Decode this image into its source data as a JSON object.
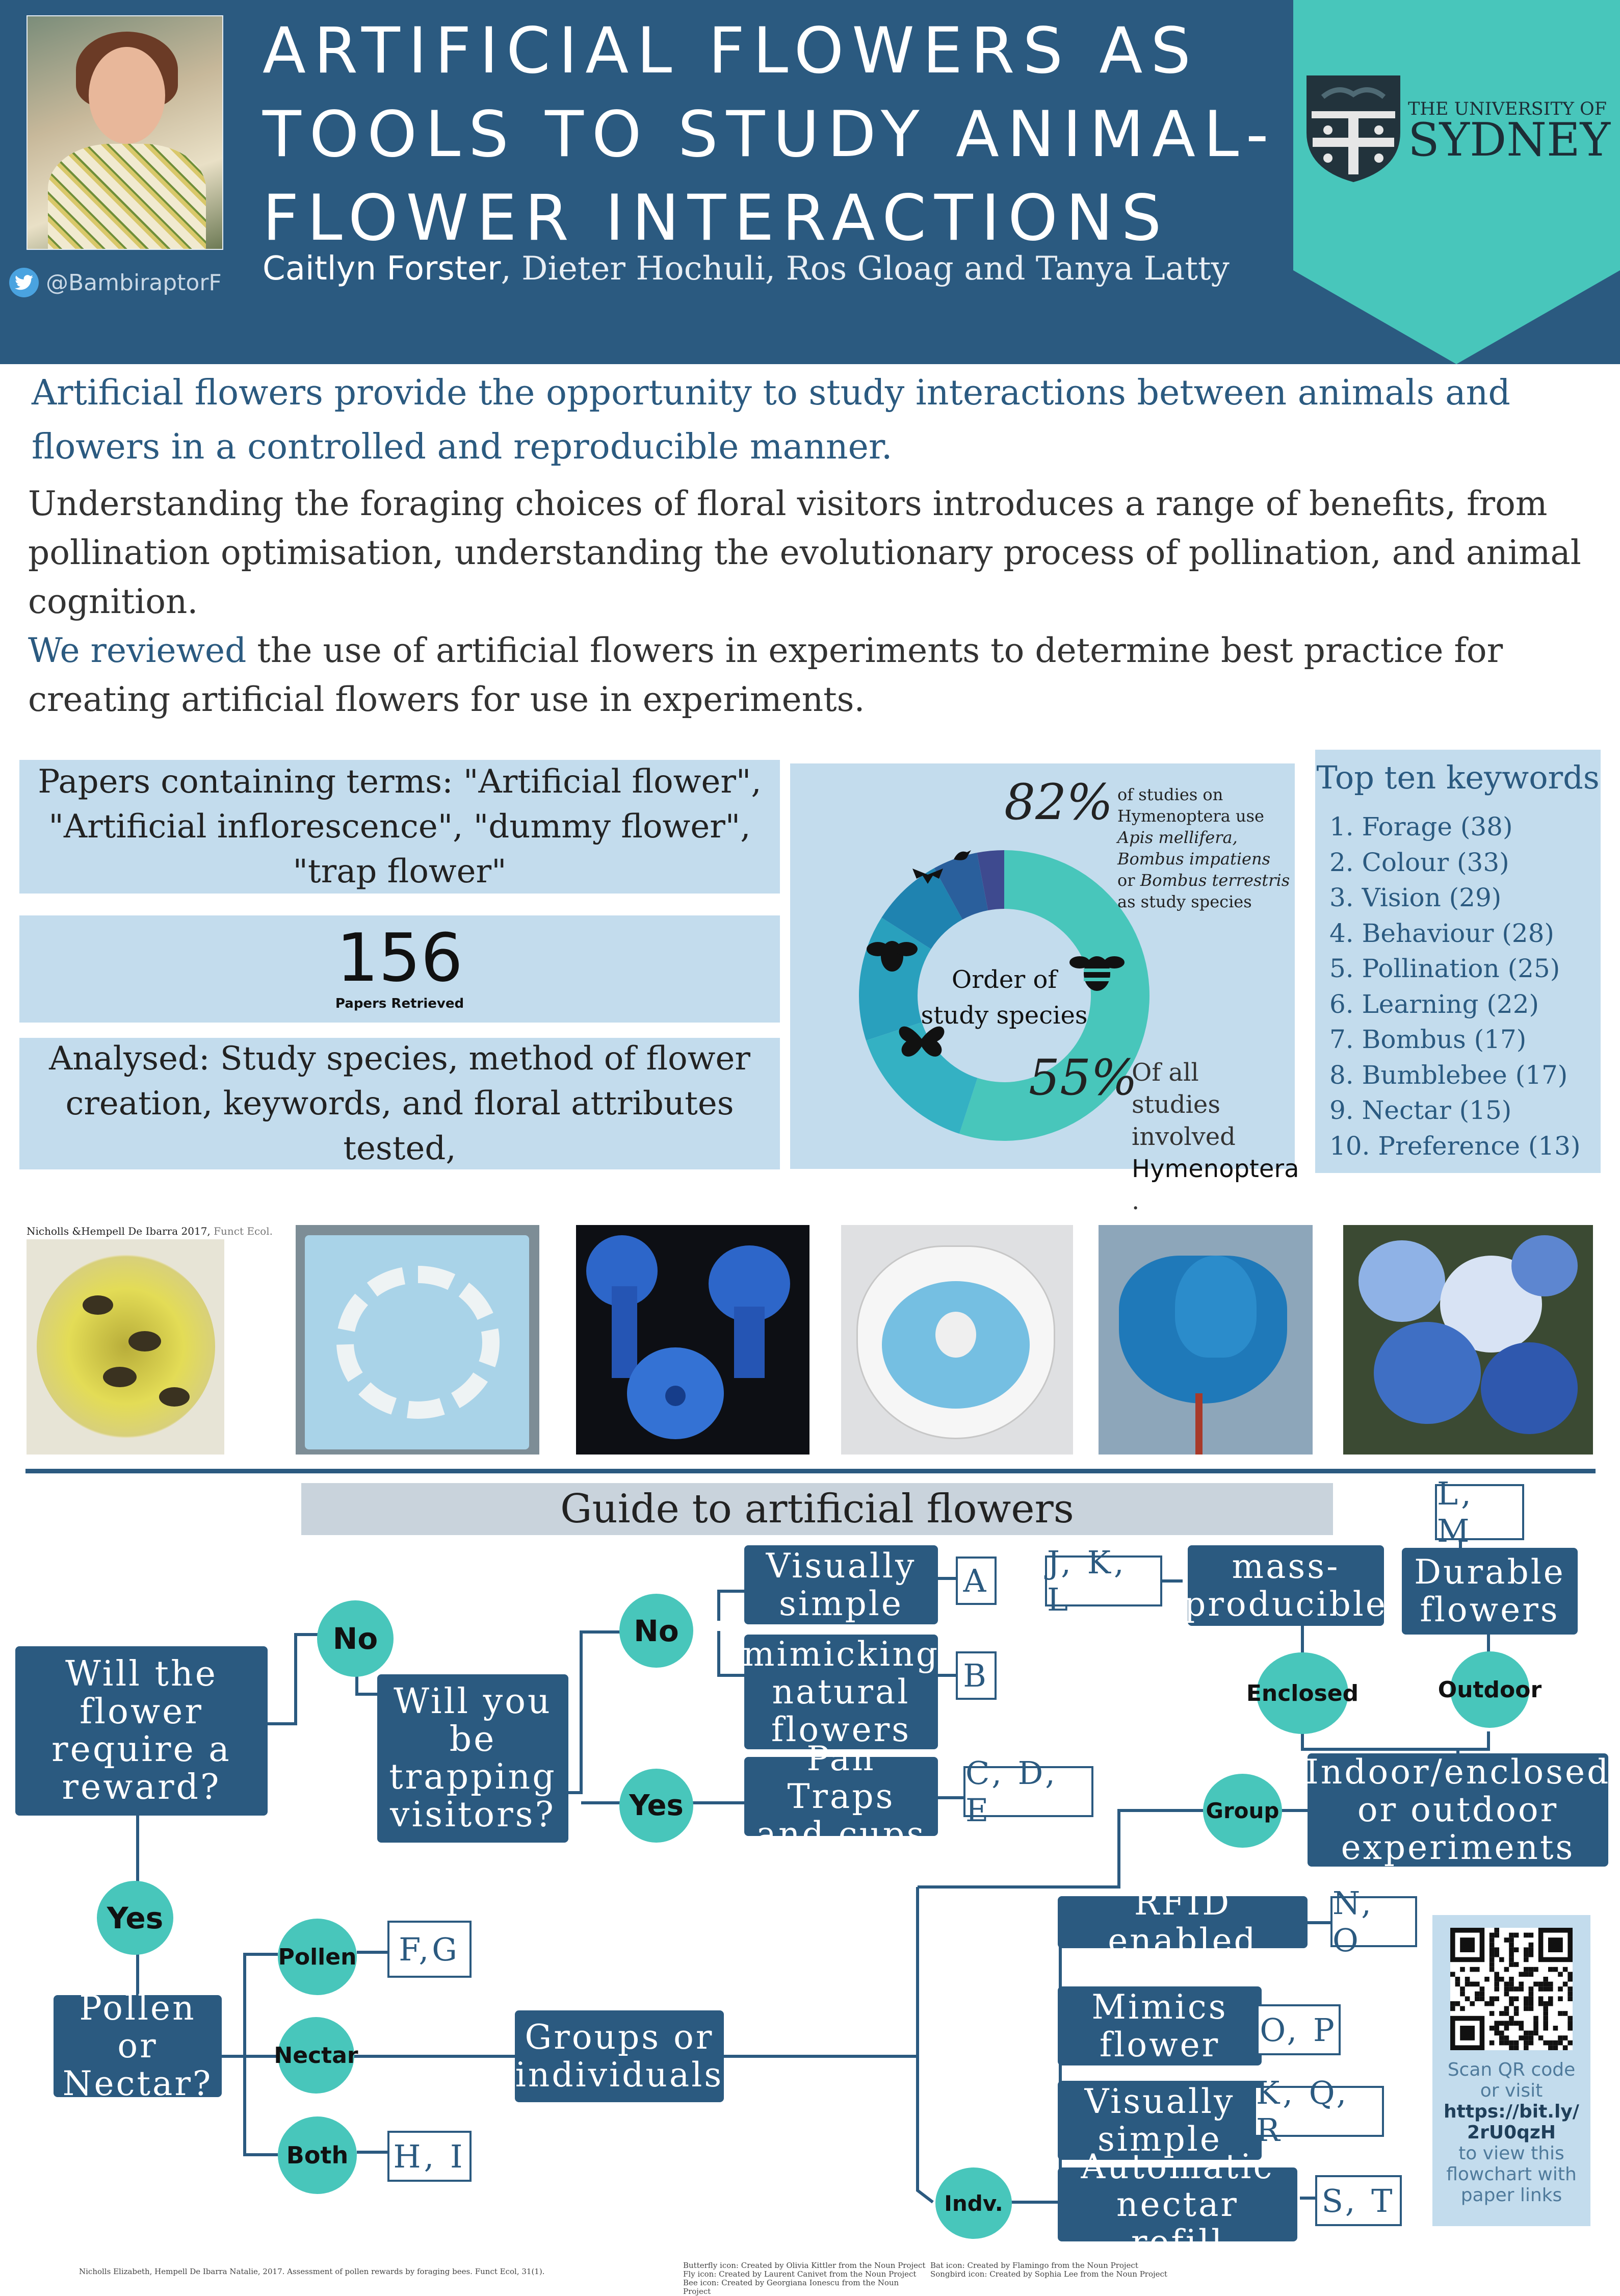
{
  "header": {
    "title_lines": [
      "ARTIFICIAL FLOWERS AS",
      "TOOLS TO STUDY ANIMAL-",
      "FLOWER INTERACTIONS"
    ],
    "lead_author": "Caitlyn Forster",
    "other_authors": ", Dieter Hochuli, Ros Gloag and Tanya Latty",
    "twitter_handle": "@BambiraptorF",
    "university_line1": "THE UNIVERSITY OF",
    "university_line2": "SYDNEY"
  },
  "intro": {
    "headline": "Artificial flowers provide the opportunity to study interactions between animals and flowers in a controlled and reproducible manner.",
    "paragraph1": "Understanding the foraging choices of floral visitors introduces a range of benefits, from pollination optimisation, understanding the evolutionary process of pollination, and animal cognition.",
    "review_highlight": "We reviewed",
    "paragraph2": " the use of artificial flowers in experiments to determine best practice for creating artificial flowers for use in experiments."
  },
  "methods": {
    "search_terms": "Papers containing terms: \"Artificial flower\", \"Artificial inflorescence\", \"dummy flower\", \"trap flower\"",
    "papers_count": "156",
    "papers_label": "Papers Retrieved",
    "analysed": "Analysed: Study species, method of flower creation, keywords, and floral attributes tested,"
  },
  "donut": {
    "center_label": "Order of study species",
    "stat1_value": "82%",
    "stat1_text_a": "of studies on Hymenoptera use ",
    "stat1_text_b": "Apis mellifera, Bombus impatiens",
    "stat1_text_c": " or ",
    "stat1_text_d": "Bombus terrestris",
    "stat1_text_e": " as study species",
    "stat2_value": "55%",
    "stat2_text": "Of all studies involved",
    "stat2_emph": "Hymenoptera",
    "stat2_dot": "."
  },
  "chart_data": {
    "type": "pie",
    "title": "Order of study species",
    "series": [
      {
        "name": "Hymenoptera",
        "value": 55,
        "color": "#48c6bb"
      },
      {
        "name": "",
        "value": 15,
        "color": "#34b1c3"
      },
      {
        "name": "",
        "value": 14,
        "color": "#29a0bd"
      },
      {
        "name": "",
        "value": 8,
        "color": "#1f83b0"
      },
      {
        "name": "",
        "value": 5,
        "color": "#2a5f9c"
      },
      {
        "name": "",
        "value": 3,
        "color": "#3e4a8f"
      }
    ]
  },
  "keywords": {
    "title": "Top ten keywords",
    "items": [
      "1. Forage (38)",
      "2. Colour (33)",
      "3. Vision (29)",
      "4. Behaviour (28)",
      "5. Pollination (25)",
      "6. Learning (22)",
      "7. Bombus (17)",
      "8. Bumblebee (17)",
      "9. Nectar (15)",
      "10. Preference (13)"
    ]
  },
  "photos": {
    "caption_first": "Nicholls &Hempell De Ibarra 2017, ",
    "caption_journal": "Funct Ecol."
  },
  "guide": {
    "title": "Guide to artificial flowers",
    "reward_question": "Will the flower require a reward?",
    "no": "No",
    "yes": "Yes",
    "trapping_question": "Will you be trapping visitors?",
    "visually_simple": "Visually simple",
    "mimicking": "mimicking natural flowers",
    "pan_traps": "Pan Traps and cups",
    "label_a": "A",
    "label_b": "B",
    "label_cde": "C, D, E",
    "pollen_or_nectar": "Pollen or Nectar?",
    "pollen": "Pollen",
    "nectar": "Nectar",
    "both": "Both",
    "label_fg": "F,G",
    "label_hi": "H, I",
    "groups_or_individuals": "Groups or individuals",
    "group": "Group",
    "indv": "Indv.",
    "indoor_outdoor": "Indoor/enclosed or outdoor experiments",
    "enclosed": "Enclosed",
    "outdoor": "Outdoor",
    "mass_producible": "mass-producible",
    "durable": "Durable flowers",
    "label_jkl": "J, K, L",
    "label_lm": "L, M",
    "rfid": "RFID enabled",
    "mimics_flower": "Mimics flower",
    "visually_simple2": "Visually simple",
    "automatic_refill": "Automatic nectar refill",
    "label_no": "N, O",
    "label_op": "O, P",
    "label_kqr": "K, Q, R",
    "label_st": "S, T"
  },
  "qr": {
    "line1": "Scan QR code or visit",
    "link": "https://bit.ly/2rU0qzH",
    "line2": "to view this flowchart with paper links"
  },
  "footer": {
    "reference": "Nicholls Elizabeth, Hempell De Ibarra Natalie, 2017. Assessment of pollen rewards by foraging bees. Funct Ecol, 31(1).",
    "credit1": "Butterfly icon: Created by Olivia Kittler from the Noun Project",
    "credit2": "Fly icon: Created by Laurent Canivet from the Noun Project",
    "credit3": "Bee icon: Created by Georgiana Ionescu from the Noun Project",
    "credit4": "Bat icon: Created by Flamingo from the Noun Project",
    "credit5": "Songbird icon: Created by Sophia Lee from the Noun Project"
  }
}
